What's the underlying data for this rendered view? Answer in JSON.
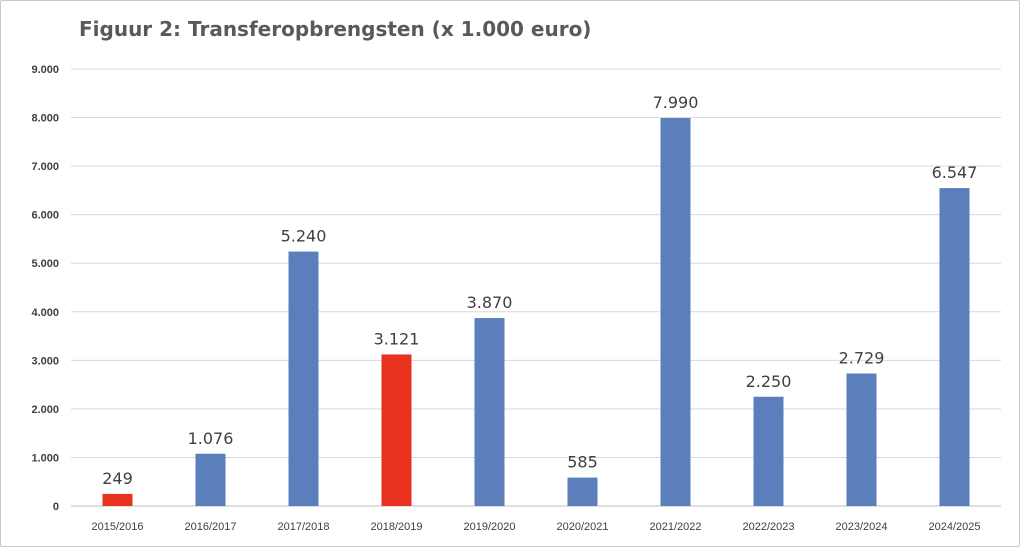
{
  "chart_data": {
    "type": "bar",
    "title": "Figuur 2: Transferopbrengsten (x 1.000 euro)",
    "xlabel": "",
    "ylabel": "",
    "categories": [
      "2015/2016",
      "2016/2017",
      "2017/2018",
      "2018/2019",
      "2019/2020",
      "2020/2021",
      "2021/2022",
      "2022/2023",
      "2023/2024",
      "2024/2025"
    ],
    "values": [
      249,
      1076,
      5240,
      3121,
      3870,
      585,
      7990,
      2250,
      2729,
      6547
    ],
    "value_labels": [
      "249",
      "1.076",
      "5.240",
      "3.121",
      "3.870",
      "585",
      "7.990",
      "2.250",
      "2.729",
      "6.547"
    ],
    "bar_colors": [
      "#e8321e",
      "#5b7fba",
      "#5b7fba",
      "#e8321e",
      "#5b7fba",
      "#5b7fba",
      "#5b7fba",
      "#5b7fba",
      "#5b7fba",
      "#5b7fba"
    ],
    "ylim": [
      0,
      9000
    ],
    "yticks": [
      0,
      1000,
      2000,
      3000,
      4000,
      5000,
      6000,
      7000,
      8000,
      9000
    ],
    "ytick_labels": [
      "0",
      "1.000",
      "2.000",
      "3.000",
      "4.000",
      "5.000",
      "6.000",
      "7.000",
      "8.000",
      "9.000"
    ],
    "grid": true,
    "legend": "none",
    "gridline_color": "#d9d9d9"
  }
}
